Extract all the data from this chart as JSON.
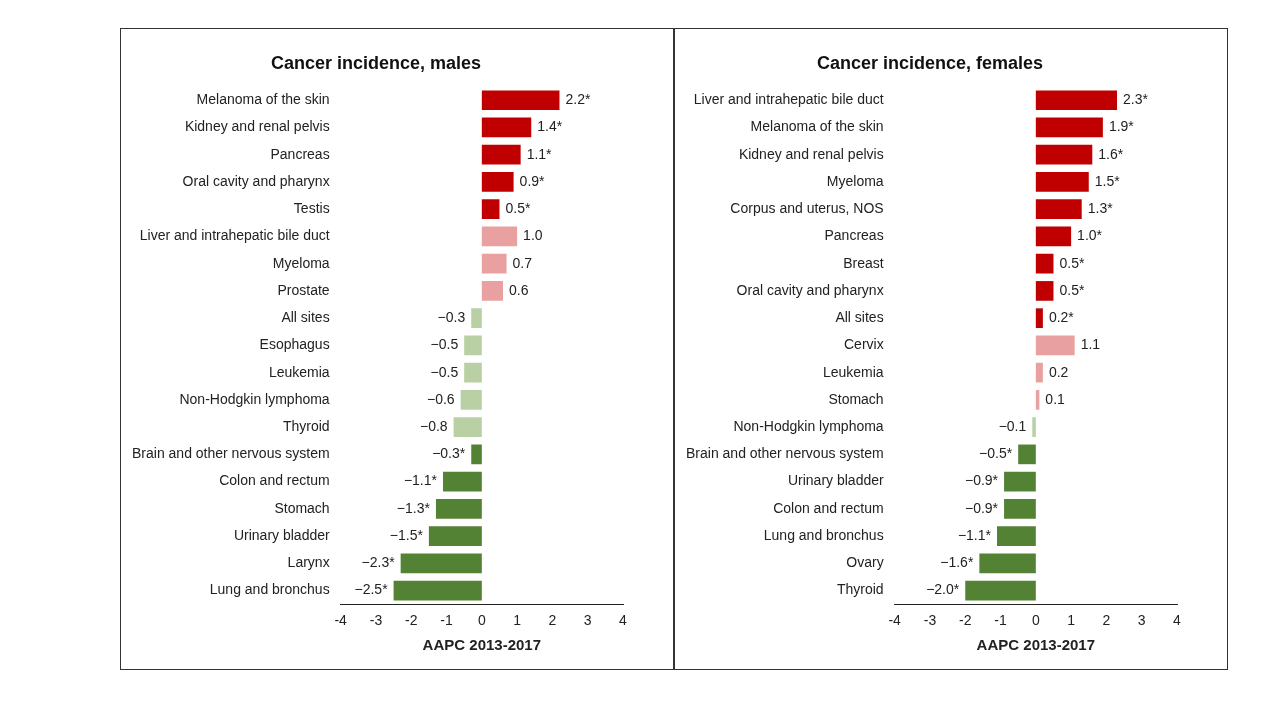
{
  "chart_data": [
    {
      "type": "bar",
      "orientation": "horizontal",
      "title": "Cancer incidence, males",
      "xlabel": "AAPC 2013-2017",
      "categories": [
        "Melanoma of the skin",
        "Kidney and renal pelvis",
        "Pancreas",
        "Oral cavity and pharynx",
        "Testis",
        "Liver and intrahepatic bile duct",
        "Myeloma",
        "Prostate",
        "All sites",
        "Esophagus",
        "Leukemia",
        "Non-Hodgkin lymphoma",
        "Thyroid",
        "Brain and other nervous system",
        "Colon and rectum",
        "Stomach",
        "Urinary bladder",
        "Larynx",
        "Lung and bronchus"
      ],
      "values": [
        2.2,
        1.4,
        1.1,
        0.9,
        0.5,
        1.0,
        0.7,
        0.6,
        -0.3,
        -0.5,
        -0.5,
        -0.6,
        -0.8,
        -0.3,
        -1.1,
        -1.3,
        -1.5,
        -2.3,
        -2.5
      ],
      "value_labels": [
        "2.2*",
        "1.4*",
        "1.1*",
        "0.9*",
        "0.5*",
        "1.0",
        "0.7",
        "0.6",
        "−0.3",
        "−0.5",
        "−0.5",
        "−0.6",
        "−0.8",
        "−0.3*",
        "−1.1*",
        "−1.3*",
        "−1.5*",
        "−2.3*",
        "−2.5*"
      ],
      "colors": [
        "#c00000",
        "#c00000",
        "#c00000",
        "#c00000",
        "#c00000",
        "#e8a0a0",
        "#e8a0a0",
        "#e8a0a0",
        "#b8d0a4",
        "#b8d0a4",
        "#b8d0a4",
        "#b8d0a4",
        "#b8d0a4",
        "#548235",
        "#548235",
        "#548235",
        "#548235",
        "#548235",
        "#548235"
      ],
      "xlim": [
        -4,
        4
      ],
      "xticks": [
        -4,
        -3,
        -2,
        -1,
        0,
        1,
        2,
        3,
        4
      ]
    },
    {
      "type": "bar",
      "orientation": "horizontal",
      "title": "Cancer incidence, females",
      "xlabel": "AAPC 2013-2017",
      "categories": [
        "Liver and intrahepatic bile duct",
        "Melanoma of the skin",
        "Kidney and renal pelvis",
        "Myeloma",
        "Corpus and uterus, NOS",
        "Pancreas",
        "Breast",
        "Oral cavity and pharynx",
        "All sites",
        "Cervix",
        "Leukemia",
        "Stomach",
        "Non-Hodgkin lymphoma",
        "Brain and other nervous system",
        "Urinary bladder",
        "Colon and rectum",
        "Lung and bronchus",
        "Ovary",
        "Thyroid"
      ],
      "values": [
        2.3,
        1.9,
        1.6,
        1.5,
        1.3,
        1.0,
        0.5,
        0.5,
        0.2,
        1.1,
        0.2,
        0.1,
        -0.1,
        -0.5,
        -0.9,
        -0.9,
        -1.1,
        -1.6,
        -2.0
      ],
      "value_labels": [
        "2.3*",
        "1.9*",
        "1.6*",
        "1.5*",
        "1.3*",
        "1.0*",
        "0.5*",
        "0.5*",
        "0.2*",
        "1.1",
        "0.2",
        "0.1",
        "−0.1",
        "−0.5*",
        "−0.9*",
        "−0.9*",
        "−1.1*",
        "−1.6*",
        "−2.0*"
      ],
      "colors": [
        "#c00000",
        "#c00000",
        "#c00000",
        "#c00000",
        "#c00000",
        "#c00000",
        "#c00000",
        "#c00000",
        "#c00000",
        "#e8a0a0",
        "#e8a0a0",
        "#e8a0a0",
        "#b8d0a4",
        "#548235",
        "#548235",
        "#548235",
        "#548235",
        "#548235",
        "#548235"
      ],
      "xlim": [
        -4,
        4
      ],
      "xticks": [
        -4,
        -3,
        -2,
        -1,
        0,
        1,
        2,
        3,
        4
      ]
    }
  ]
}
